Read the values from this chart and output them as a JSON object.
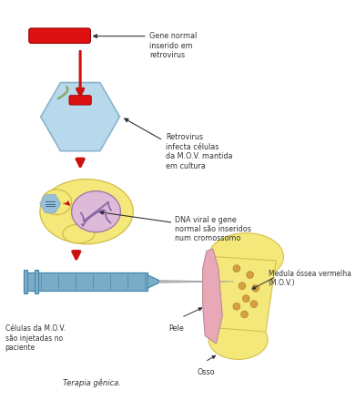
{
  "labels": {
    "gene_normal": "Gene normal\ninserido em\nretrovirus",
    "retrovirus": "Retrovirus\ninfecta células\nda M.O.V. mantida\nem cultura",
    "dna_viral": "DNA viral e gene\nnormal são inseridos\nnum cromossomo",
    "celulas_mov": "Células da M.O.V.\nsão injetadas no\npaciente",
    "terapia": "Terapia gênica.",
    "medula": "Medula óssea vermelha\n(M.O.V.)",
    "pele": "Pele",
    "osso": "Osso"
  },
  "colors": {
    "red_gene": "#dd1111",
    "hex_fill": "#b8d8ec",
    "hex_border": "#8ab4cc",
    "cell_yellow": "#f5e87a",
    "cell_border": "#d4c050",
    "nucleus_fill": "#ddbbd8",
    "nucleus_border": "#a878a8",
    "chrom_color": "#8868a8",
    "small_hex_fill": "#9ac0d8",
    "syringe_blue": "#7aacc8",
    "syringe_border": "#4488aa",
    "needle_color": "#aaaaaa",
    "bone_yellow": "#f5e87a",
    "bone_border": "#d4c050",
    "bone_pink": "#e8a8b8",
    "bone_pink_border": "#c08898",
    "marrow_dot": "#d4a040",
    "arrow_red": "#cc1111",
    "arrow_black": "#333333",
    "dna_green": "#8aaa68",
    "text_color": "#333333",
    "white": "#ffffff"
  },
  "figsize": [
    3.91,
    4.52
  ],
  "dpi": 100
}
